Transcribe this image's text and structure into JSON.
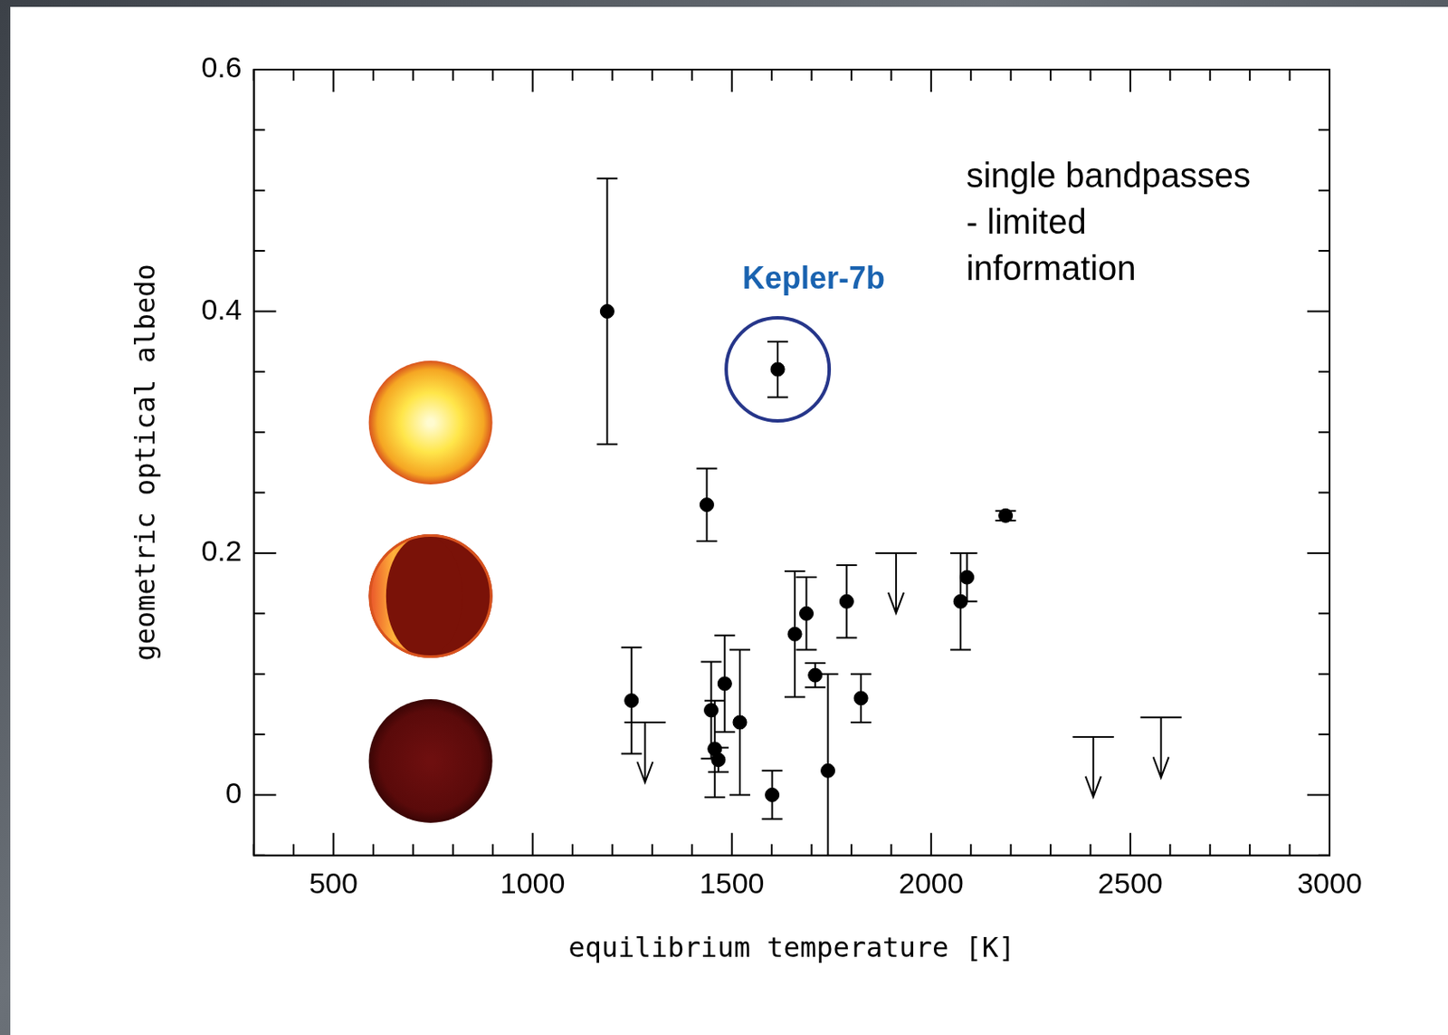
{
  "chart_data": {
    "type": "scatter",
    "x_label": "equilibrium temperature [K]",
    "y_label": "geometric optical albedo",
    "x": [
      1187,
      1615,
      1437,
      2187,
      1248,
      1448,
      1457,
      1466,
      1482,
      1520,
      1601,
      1658,
      1687,
      1709,
      1741,
      1788,
      1824,
      2074,
      2090
    ],
    "values": [
      0.4,
      0.352,
      0.24,
      0.231,
      0.078,
      0.07,
      0.038,
      0.029,
      0.092,
      0.06,
      0.0,
      0.133,
      0.15,
      0.099,
      0.02,
      0.16,
      0.08,
      0.16,
      0.18
    ],
    "y_err": [
      0.11,
      0.023,
      0.03,
      0.004,
      0.044,
      0.04,
      0.04,
      0.01,
      0.04,
      0.06,
      0.02,
      0.052,
      0.03,
      0.01,
      0.08,
      0.03,
      0.02,
      0.04,
      0.02
    ],
    "upper_limits": {
      "x": [
        1282,
        1912,
        2407,
        2577
      ],
      "values": [
        0.06,
        0.2,
        0.048,
        0.064
      ]
    },
    "color": "#000000",
    "marker": "circle",
    "xlim": [
      300,
      3000
    ],
    "xticks": [
      500,
      1000,
      1500,
      2000,
      2500,
      3000
    ],
    "ylim": [
      -0.05,
      0.6
    ],
    "yticks": [
      0,
      0.2,
      0.4,
      0.6
    ],
    "grid": false,
    "annotations": [
      {
        "text": "Kepler-7b",
        "x": 1615,
        "y": 0.352,
        "color": "#1a63b0"
      }
    ],
    "note": [
      "single bandpasses",
      "- limited",
      "information"
    ]
  }
}
